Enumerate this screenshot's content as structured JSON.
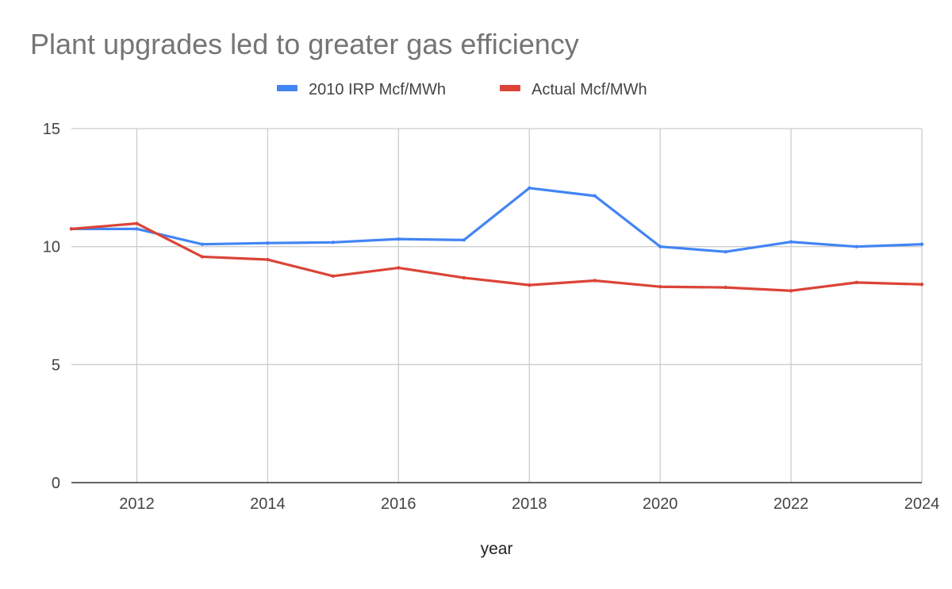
{
  "chart_data": {
    "type": "line",
    "title": "Plant upgrades led to greater gas efficiency",
    "xlabel": "year",
    "ylabel": "",
    "xlim": [
      2011,
      2024
    ],
    "ylim": [
      0,
      15
    ],
    "grid": true,
    "legend_position": "top-center",
    "x_ticks": [
      2012,
      2014,
      2016,
      2018,
      2020,
      2022,
      2024
    ],
    "x_tick_labels": [
      "2012",
      "2014",
      "2016",
      "2018",
      "2020",
      "2022",
      "2024"
    ],
    "y_ticks": [
      0,
      5,
      10,
      15
    ],
    "y_tick_labels": [
      "0",
      "5",
      "10",
      "15"
    ],
    "x": [
      2011,
      2012,
      2013,
      2014,
      2015,
      2016,
      2017,
      2018,
      2019,
      2020,
      2021,
      2022,
      2023,
      2024
    ],
    "series": [
      {
        "name": "2010 IRP Mcf/MWh",
        "color": "#4285f4",
        "values": [
          10.75,
          10.75,
          10.1,
          10.15,
          10.18,
          10.32,
          10.28,
          12.48,
          12.15,
          10.0,
          9.78,
          10.2,
          10.0,
          10.1
        ]
      },
      {
        "name": "Actual Mcf/MWh",
        "color": "#db4437",
        "values": [
          10.75,
          10.98,
          9.57,
          9.45,
          8.75,
          9.1,
          8.68,
          8.37,
          8.56,
          8.3,
          8.27,
          8.13,
          8.48,
          8.4
        ]
      }
    ]
  },
  "colors": {
    "gridline": "#cccccc",
    "axis": "#333333",
    "title": "#757575"
  }
}
